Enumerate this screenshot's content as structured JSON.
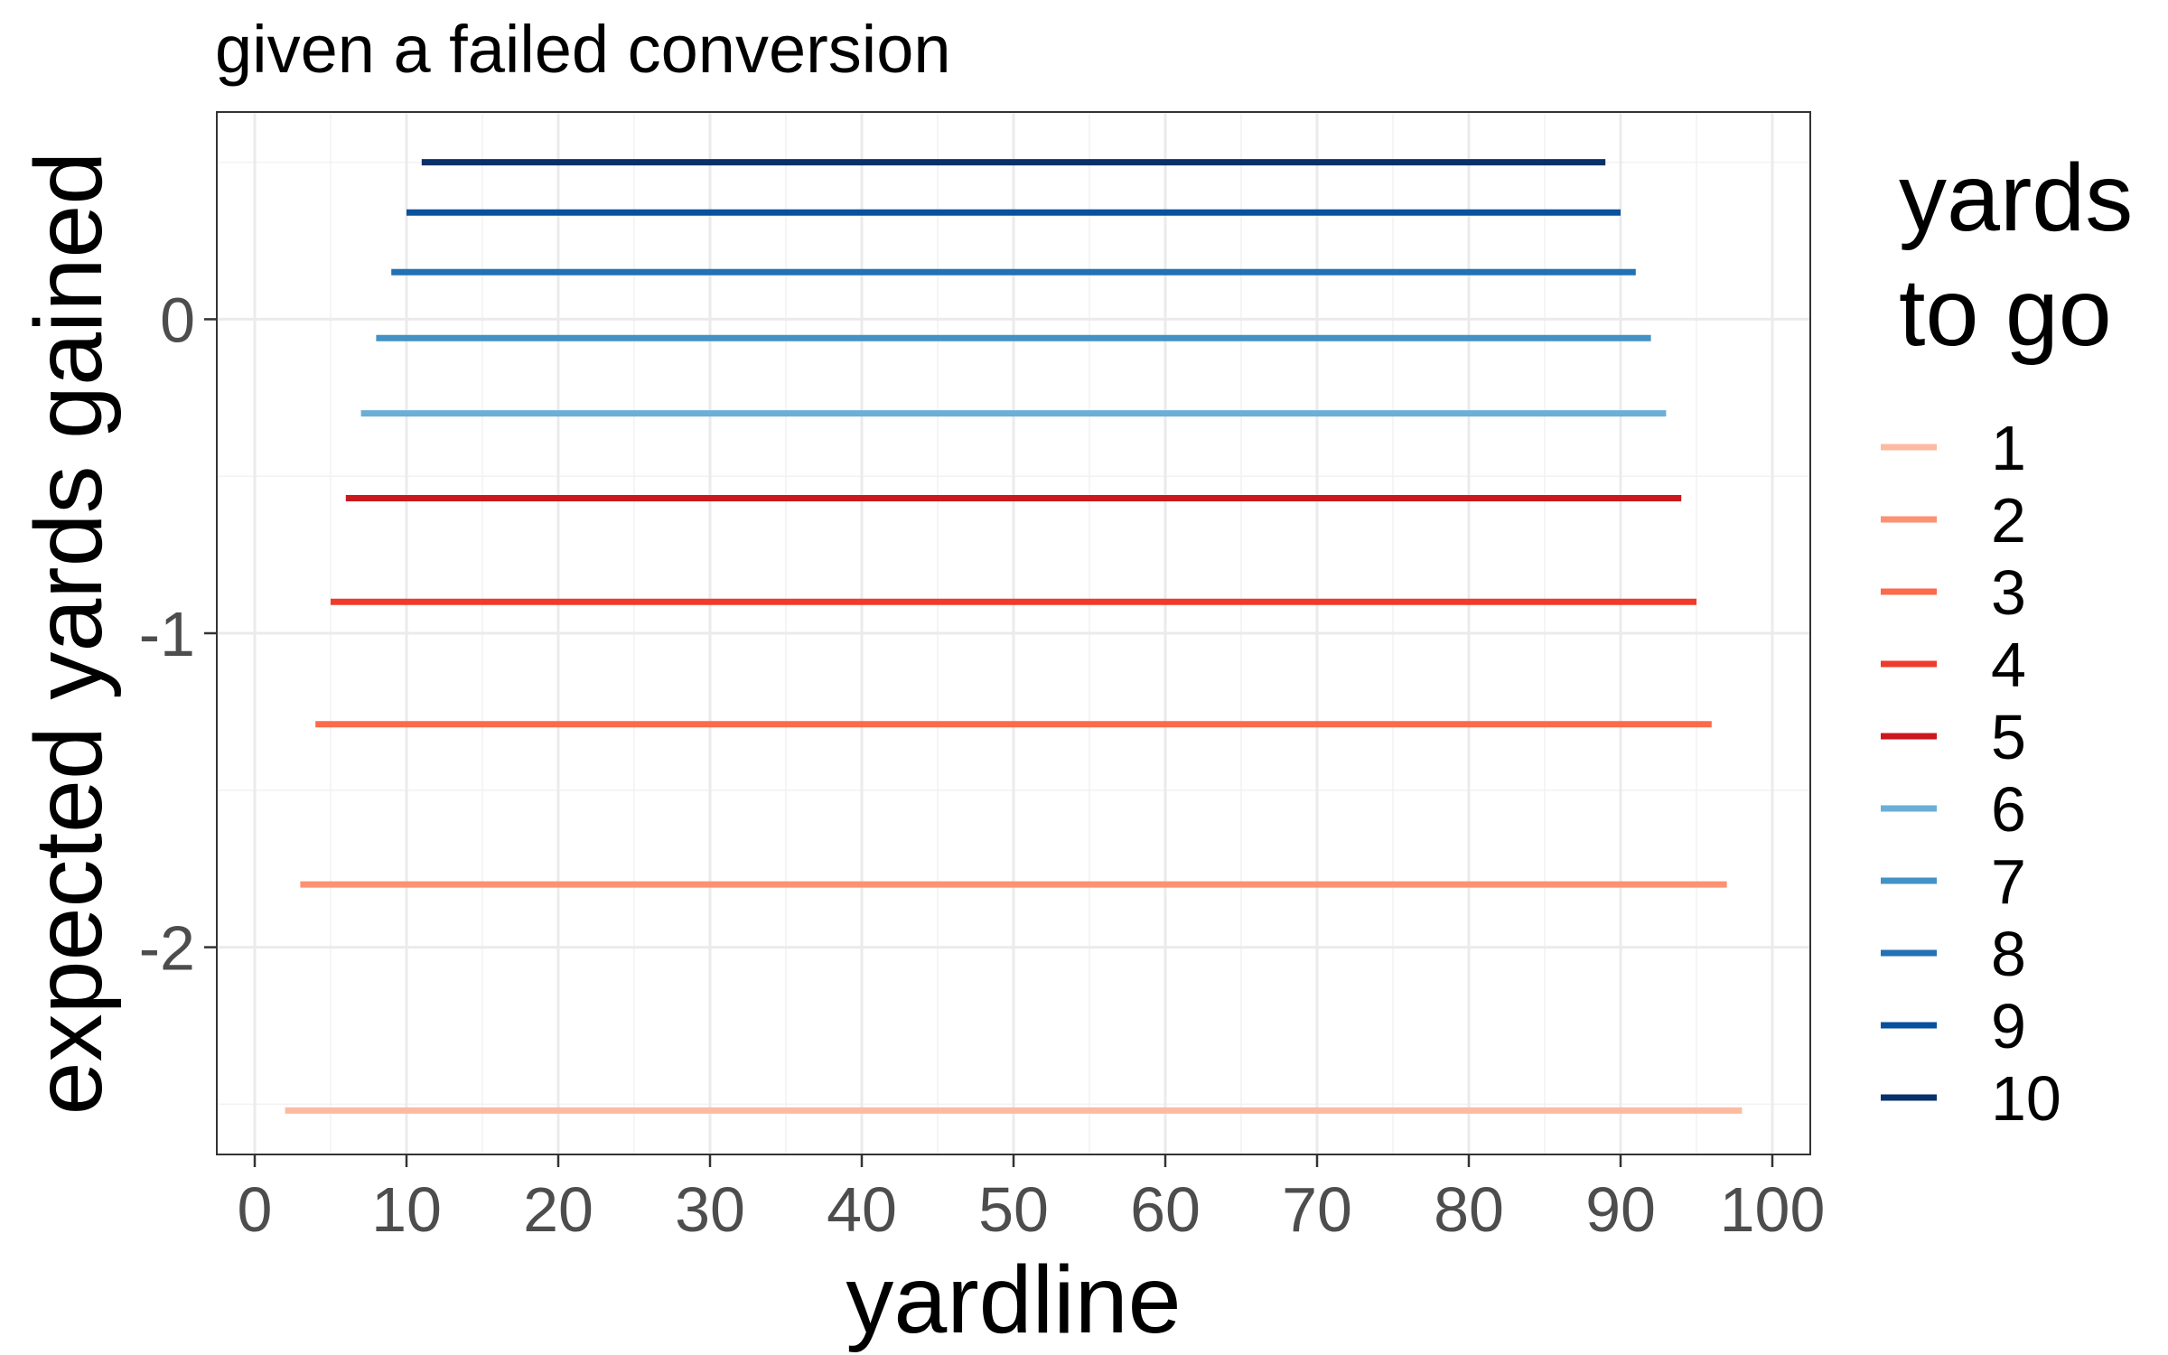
{
  "chart_data": {
    "type": "line",
    "title": "given a failed conversion",
    "xlabel": "yardline",
    "ylabel": "expected yards gained",
    "xlim": [
      -2.5,
      102.5
    ],
    "ylim": [
      -2.66,
      0.66
    ],
    "x_ticks": [
      0,
      10,
      20,
      30,
      40,
      50,
      60,
      70,
      80,
      90,
      100
    ],
    "x_tick_labels": [
      "0",
      "10",
      "20",
      "30",
      "40",
      "50",
      "60",
      "70",
      "80",
      "90",
      "100"
    ],
    "y_ticks": [
      0,
      -1,
      -2
    ],
    "y_tick_labels": [
      "0",
      "-1",
      "-2"
    ],
    "y_minor_ticks": [
      0.5,
      -0.5,
      -1.5,
      -2.5
    ],
    "grid": true,
    "legend": {
      "title_lines": [
        "yards",
        "to go"
      ],
      "position": "right"
    },
    "series": [
      {
        "name": "1",
        "color": "#fcbba1",
        "x": [
          2,
          98
        ],
        "y": [
          -2.52,
          -2.52
        ]
      },
      {
        "name": "2",
        "color": "#fc9272",
        "x": [
          3,
          97
        ],
        "y": [
          -1.8,
          -1.8
        ]
      },
      {
        "name": "3",
        "color": "#fb6a4a",
        "x": [
          4,
          96
        ],
        "y": [
          -1.29,
          -1.29
        ]
      },
      {
        "name": "4",
        "color": "#ef3b2c",
        "x": [
          5,
          95
        ],
        "y": [
          -0.9,
          -0.9
        ]
      },
      {
        "name": "5",
        "color": "#cb181d",
        "x": [
          6,
          94
        ],
        "y": [
          -0.57,
          -0.57
        ]
      },
      {
        "name": "6",
        "color": "#6baed6",
        "x": [
          7,
          93
        ],
        "y": [
          -0.3,
          -0.3
        ]
      },
      {
        "name": "7",
        "color": "#4292c6",
        "x": [
          8,
          92
        ],
        "y": [
          -0.06,
          -0.06
        ]
      },
      {
        "name": "8",
        "color": "#2171b5",
        "x": [
          9,
          91
        ],
        "y": [
          0.15,
          0.15
        ]
      },
      {
        "name": "9",
        "color": "#08519c",
        "x": [
          10,
          90
        ],
        "y": [
          0.34,
          0.34
        ]
      },
      {
        "name": "10",
        "color": "#08306b",
        "x": [
          11,
          89
        ],
        "y": [
          0.5,
          0.5
        ]
      }
    ]
  }
}
